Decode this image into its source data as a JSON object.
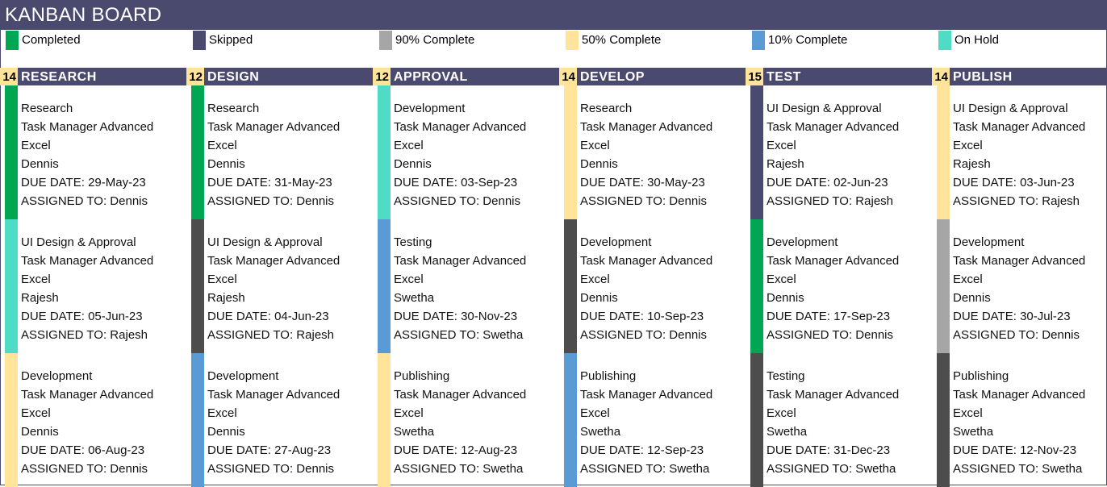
{
  "title": "KANBAN BOARD",
  "legend": [
    {
      "label": "Completed",
      "color": "#00a651"
    },
    {
      "label": "Skipped",
      "color": "#4a4a6e"
    },
    {
      "label": "90% Complete",
      "color": "#a6a6a6"
    },
    {
      "label": "50% Complete",
      "color": "#ffe49a"
    },
    {
      "label": "10% Complete",
      "color": "#5b9bd5"
    },
    {
      "label": "On Hold",
      "color": "#4fdcc4"
    }
  ],
  "columns": [
    {
      "count": "14",
      "title": "RESEARCH",
      "cards": [
        {
          "task": "Research",
          "project": "Task Manager Advanced",
          "category": "Excel",
          "owner": "Dennis",
          "due": "DUE DATE: 29-May-23",
          "assigned": "ASSIGNED TO: Dennis",
          "color": "#00a651"
        },
        {
          "task": "UI Design & Approval",
          "project": "Task Manager Advanced",
          "category": "Excel",
          "owner": "Rajesh",
          "due": "DUE DATE: 05-Jun-23",
          "assigned": "ASSIGNED TO: Rajesh",
          "color": "#4fdcc4"
        },
        {
          "task": "Development",
          "project": "Task Manager Advanced",
          "category": "Excel",
          "owner": "Dennis",
          "due": "DUE DATE: 06-Aug-23",
          "assigned": "ASSIGNED TO: Dennis",
          "color": "#ffe49a"
        }
      ]
    },
    {
      "count": "12",
      "title": "DESIGN",
      "cards": [
        {
          "task": "Research",
          "project": "Task Manager Advanced",
          "category": "Excel",
          "owner": "Dennis",
          "due": "DUE DATE: 31-May-23",
          "assigned": "ASSIGNED TO: Dennis",
          "color": "#00a651"
        },
        {
          "task": "UI Design & Approval",
          "project": "Task Manager Advanced",
          "category": "Excel",
          "owner": "Rajesh",
          "due": "DUE DATE: 04-Jun-23",
          "assigned": "ASSIGNED TO: Rajesh",
          "color": "#4d4d4d"
        },
        {
          "task": "Development",
          "project": "Task Manager Advanced",
          "category": "Excel",
          "owner": "Dennis",
          "due": "DUE DATE: 27-Aug-23",
          "assigned": "ASSIGNED TO: Dennis",
          "color": "#5b9bd5"
        }
      ]
    },
    {
      "count": "12",
      "title": "APPROVAL",
      "cards": [
        {
          "task": "Development",
          "project": "Task Manager Advanced",
          "category": "Excel",
          "owner": "Dennis",
          "due": "DUE DATE: 03-Sep-23",
          "assigned": "ASSIGNED TO: Dennis",
          "color": "#4fdcc4"
        },
        {
          "task": "Testing",
          "project": "Task Manager Advanced",
          "category": "Excel",
          "owner": "Swetha",
          "due": "DUE DATE: 30-Nov-23",
          "assigned": "ASSIGNED TO: Swetha",
          "color": "#5b9bd5"
        },
        {
          "task": "Publishing",
          "project": "Task Manager Advanced",
          "category": "Excel",
          "owner": "Swetha",
          "due": "DUE DATE: 12-Aug-23",
          "assigned": "ASSIGNED TO: Swetha",
          "color": "#ffe49a"
        }
      ]
    },
    {
      "count": "14",
      "title": "DEVELOP",
      "cards": [
        {
          "task": "Research",
          "project": "Task Manager Advanced",
          "category": "Excel",
          "owner": "Dennis",
          "due": "DUE DATE: 30-May-23",
          "assigned": "ASSIGNED TO: Dennis",
          "color": "#ffe49a"
        },
        {
          "task": "Development",
          "project": "Task Manager Advanced",
          "category": "Excel",
          "owner": "Dennis",
          "due": "DUE DATE: 10-Sep-23",
          "assigned": "ASSIGNED TO: Dennis",
          "color": "#4d4d4d"
        },
        {
          "task": "Publishing",
          "project": "Task Manager Advanced",
          "category": "Excel",
          "owner": "Swetha",
          "due": "DUE DATE: 12-Sep-23",
          "assigned": "ASSIGNED TO: Swetha",
          "color": "#5b9bd5"
        }
      ]
    },
    {
      "count": "15",
      "title": "TEST",
      "cards": [
        {
          "task": "UI Design & Approval",
          "project": "Task Manager Advanced",
          "category": "Excel",
          "owner": "Rajesh",
          "due": "DUE DATE: 02-Jun-23",
          "assigned": "ASSIGNED TO: Rajesh",
          "color": "#4a4a6e"
        },
        {
          "task": "Development",
          "project": "Task Manager Advanced",
          "category": "Excel",
          "owner": "Dennis",
          "due": "DUE DATE: 17-Sep-23",
          "assigned": "ASSIGNED TO: Dennis",
          "color": "#00a651"
        },
        {
          "task": "Testing",
          "project": "Task Manager Advanced",
          "category": "Excel",
          "owner": "Swetha",
          "due": "DUE DATE: 31-Dec-23",
          "assigned": "ASSIGNED TO: Swetha",
          "color": "#4d4d4d"
        }
      ]
    },
    {
      "count": "14",
      "title": "PUBLISH",
      "cards": [
        {
          "task": "UI Design & Approval",
          "project": "Task Manager Advanced",
          "category": "Excel",
          "owner": "Rajesh",
          "due": "DUE DATE: 03-Jun-23",
          "assigned": "ASSIGNED TO: Rajesh",
          "color": "#ffe49a"
        },
        {
          "task": "Development",
          "project": "Task Manager Advanced",
          "category": "Excel",
          "owner": "Dennis",
          "due": "DUE DATE: 30-Jul-23",
          "assigned": "ASSIGNED TO: Dennis",
          "color": "#a6a6a6"
        },
        {
          "task": "Publishing",
          "project": "Task Manager Advanced",
          "category": "Excel",
          "owner": "Swetha",
          "due": "DUE DATE: 12-Nov-23",
          "assigned": "ASSIGNED TO: Swetha",
          "color": "#4d4d4d"
        }
      ]
    }
  ]
}
